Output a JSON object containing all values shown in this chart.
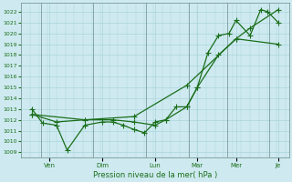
{
  "background_color": "#ceeaf0",
  "grid_color": "#aad4dc",
  "line_color": "#1a6e1a",
  "xlabel": "Pression niveau de la mer( hPa )",
  "ylim_min": 1008.5,
  "ylim_max": 1022.8,
  "yticks": [
    1009,
    1010,
    1011,
    1012,
    1013,
    1014,
    1015,
    1016,
    1017,
    1018,
    1019,
    1020,
    1021,
    1022
  ],
  "x_day_labels": [
    "Ven",
    "Dim",
    "Lun",
    "Mar",
    "Mer",
    "Je"
  ],
  "x_day_positions": [
    0.5,
    2.0,
    3.5,
    4.7,
    5.8,
    7.0
  ],
  "xlim_min": -0.3,
  "xlim_max": 7.3,
  "series1_x": [
    0.0,
    0.3,
    0.7,
    1.0,
    1.5,
    2.0,
    2.3,
    2.6,
    2.9,
    3.2,
    3.5,
    3.8,
    4.1,
    4.4,
    4.7,
    5.0,
    5.3,
    5.6,
    5.8,
    6.2,
    6.5,
    6.7,
    7.0
  ],
  "series1_y": [
    1013.0,
    1011.7,
    1011.5,
    1009.2,
    1011.5,
    1011.8,
    1011.8,
    1011.5,
    1011.1,
    1010.8,
    1011.8,
    1012.0,
    1013.2,
    1013.2,
    1015.0,
    1018.2,
    1019.8,
    1020.0,
    1021.2,
    1019.8,
    1022.2,
    1022.0,
    1021.0
  ],
  "series2_x": [
    0.0,
    0.7,
    1.5,
    2.3,
    2.9,
    3.5,
    3.8,
    4.4,
    4.7,
    5.3,
    5.8,
    6.2,
    7.0
  ],
  "series2_y": [
    1012.5,
    1011.8,
    1012.0,
    1012.0,
    1011.8,
    1011.5,
    1012.0,
    1013.2,
    1015.0,
    1018.0,
    1019.5,
    1020.5,
    1022.2
  ],
  "series3_x": [
    0.0,
    1.5,
    2.9,
    4.4,
    5.8,
    7.0
  ],
  "series3_y": [
    1012.5,
    1012.0,
    1012.3,
    1015.2,
    1019.5,
    1019.0
  ]
}
